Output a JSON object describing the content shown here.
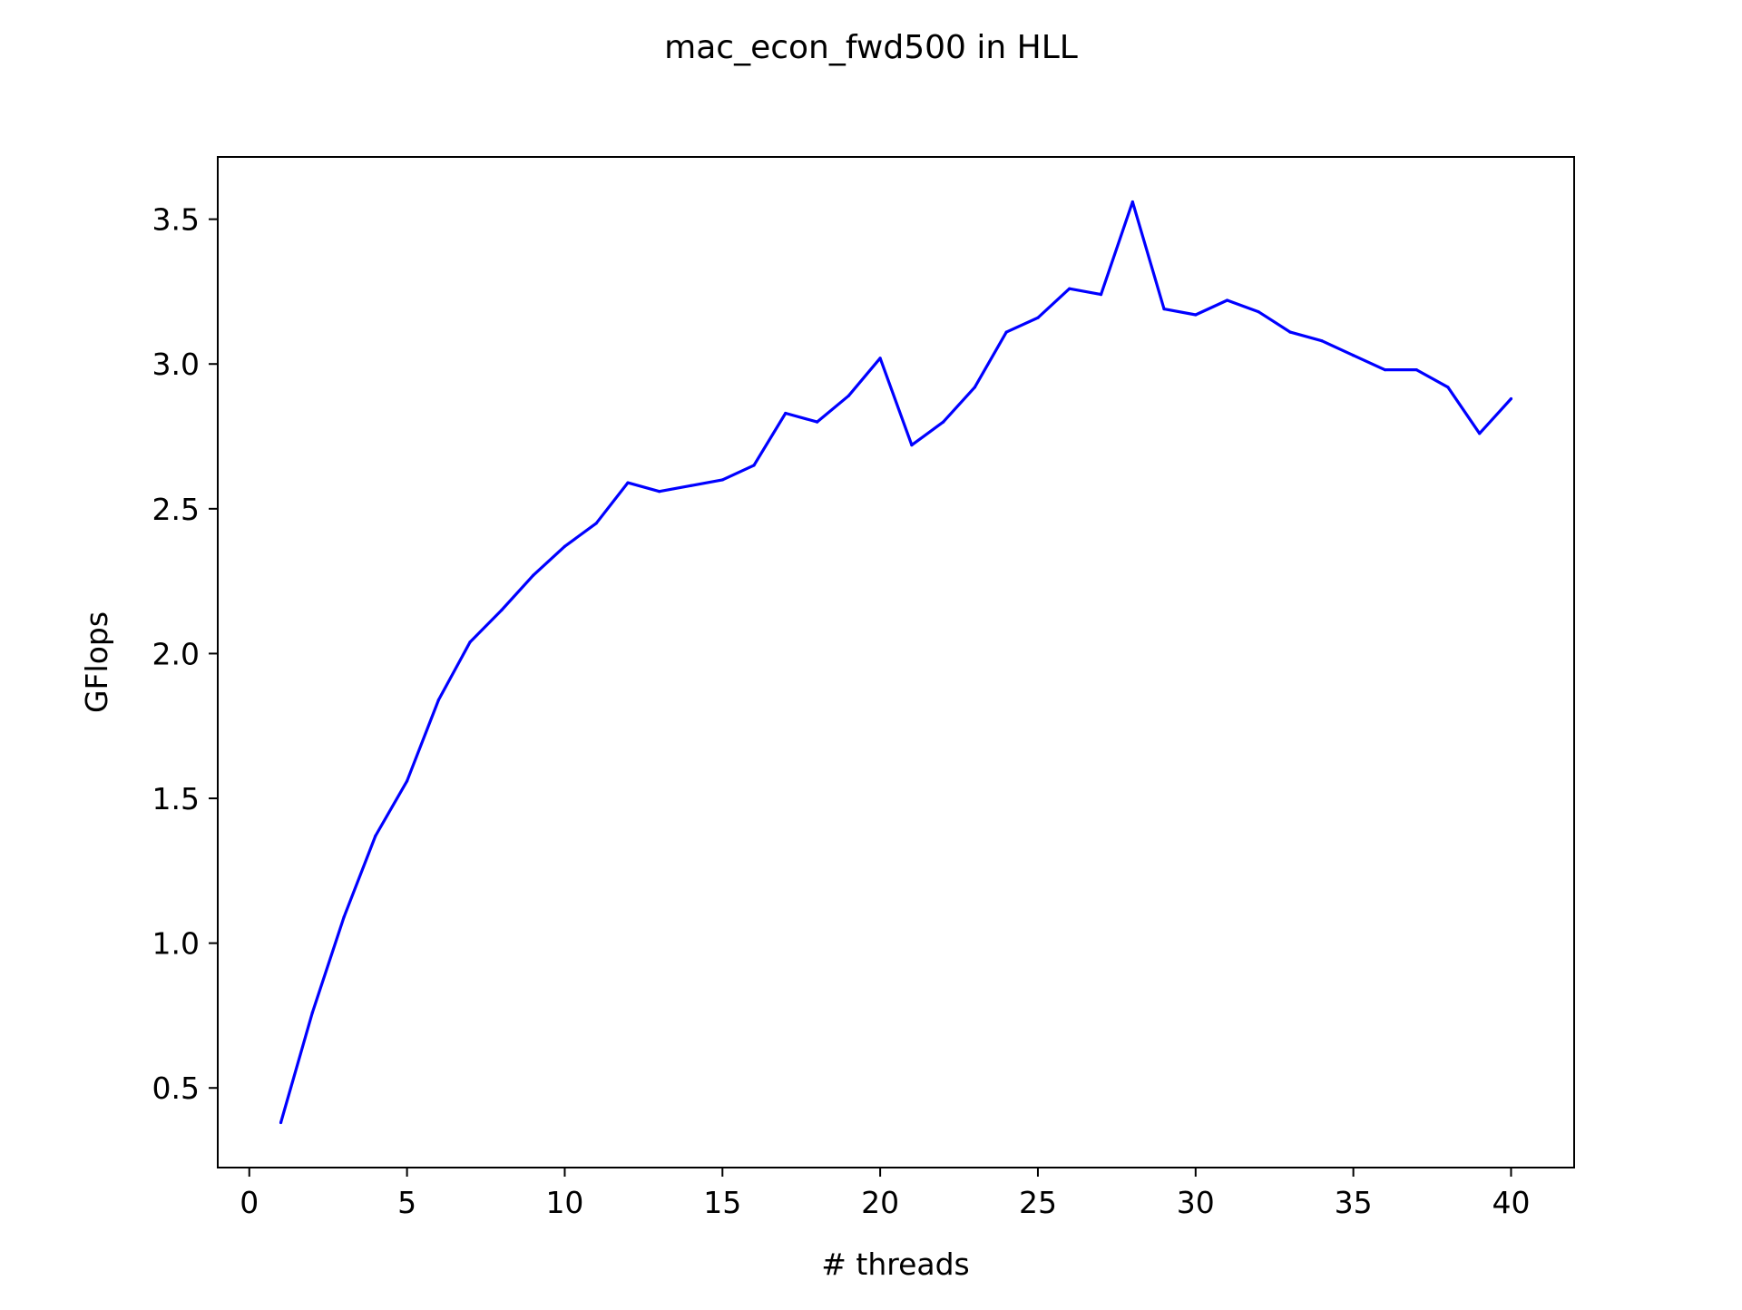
{
  "chart_data": {
    "type": "line",
    "title": "mac_econ_fwd500 in HLL",
    "xlabel": "# threads",
    "ylabel": "GFlops",
    "xlim": [
      -1,
      42
    ],
    "ylim": [
      0.225,
      3.715
    ],
    "xticks": [
      0,
      5,
      10,
      15,
      20,
      25,
      30,
      35,
      40
    ],
    "xtick_labels": [
      "0",
      "5",
      "10",
      "15",
      "20",
      "25",
      "30",
      "35",
      "40"
    ],
    "yticks": [
      0.5,
      1.0,
      1.5,
      2.0,
      2.5,
      3.0,
      3.5
    ],
    "ytick_labels": [
      "0.5",
      "1.0",
      "1.5",
      "2.0",
      "2.5",
      "3.0",
      "3.5"
    ],
    "grid": false,
    "series": [
      {
        "color": "#0000ff",
        "x": [
          1,
          2,
          3,
          4,
          5,
          6,
          7,
          8,
          9,
          10,
          11,
          12,
          13,
          14,
          15,
          16,
          17,
          18,
          19,
          20,
          21,
          22,
          23,
          24,
          25,
          26,
          27,
          28,
          29,
          30,
          31,
          32,
          33,
          34,
          35,
          36,
          37,
          38,
          39,
          40
        ],
        "values": [
          0.38,
          0.76,
          1.09,
          1.37,
          1.56,
          1.84,
          2.04,
          2.15,
          2.27,
          2.37,
          2.45,
          2.59,
          2.56,
          2.58,
          2.6,
          2.65,
          2.83,
          2.8,
          2.89,
          3.02,
          2.72,
          2.8,
          2.92,
          3.11,
          3.16,
          3.26,
          3.24,
          3.56,
          3.19,
          3.17,
          3.22,
          3.18,
          3.11,
          3.08,
          3.03,
          2.98,
          2.98,
          2.92,
          2.76,
          2.88
        ]
      }
    ]
  }
}
